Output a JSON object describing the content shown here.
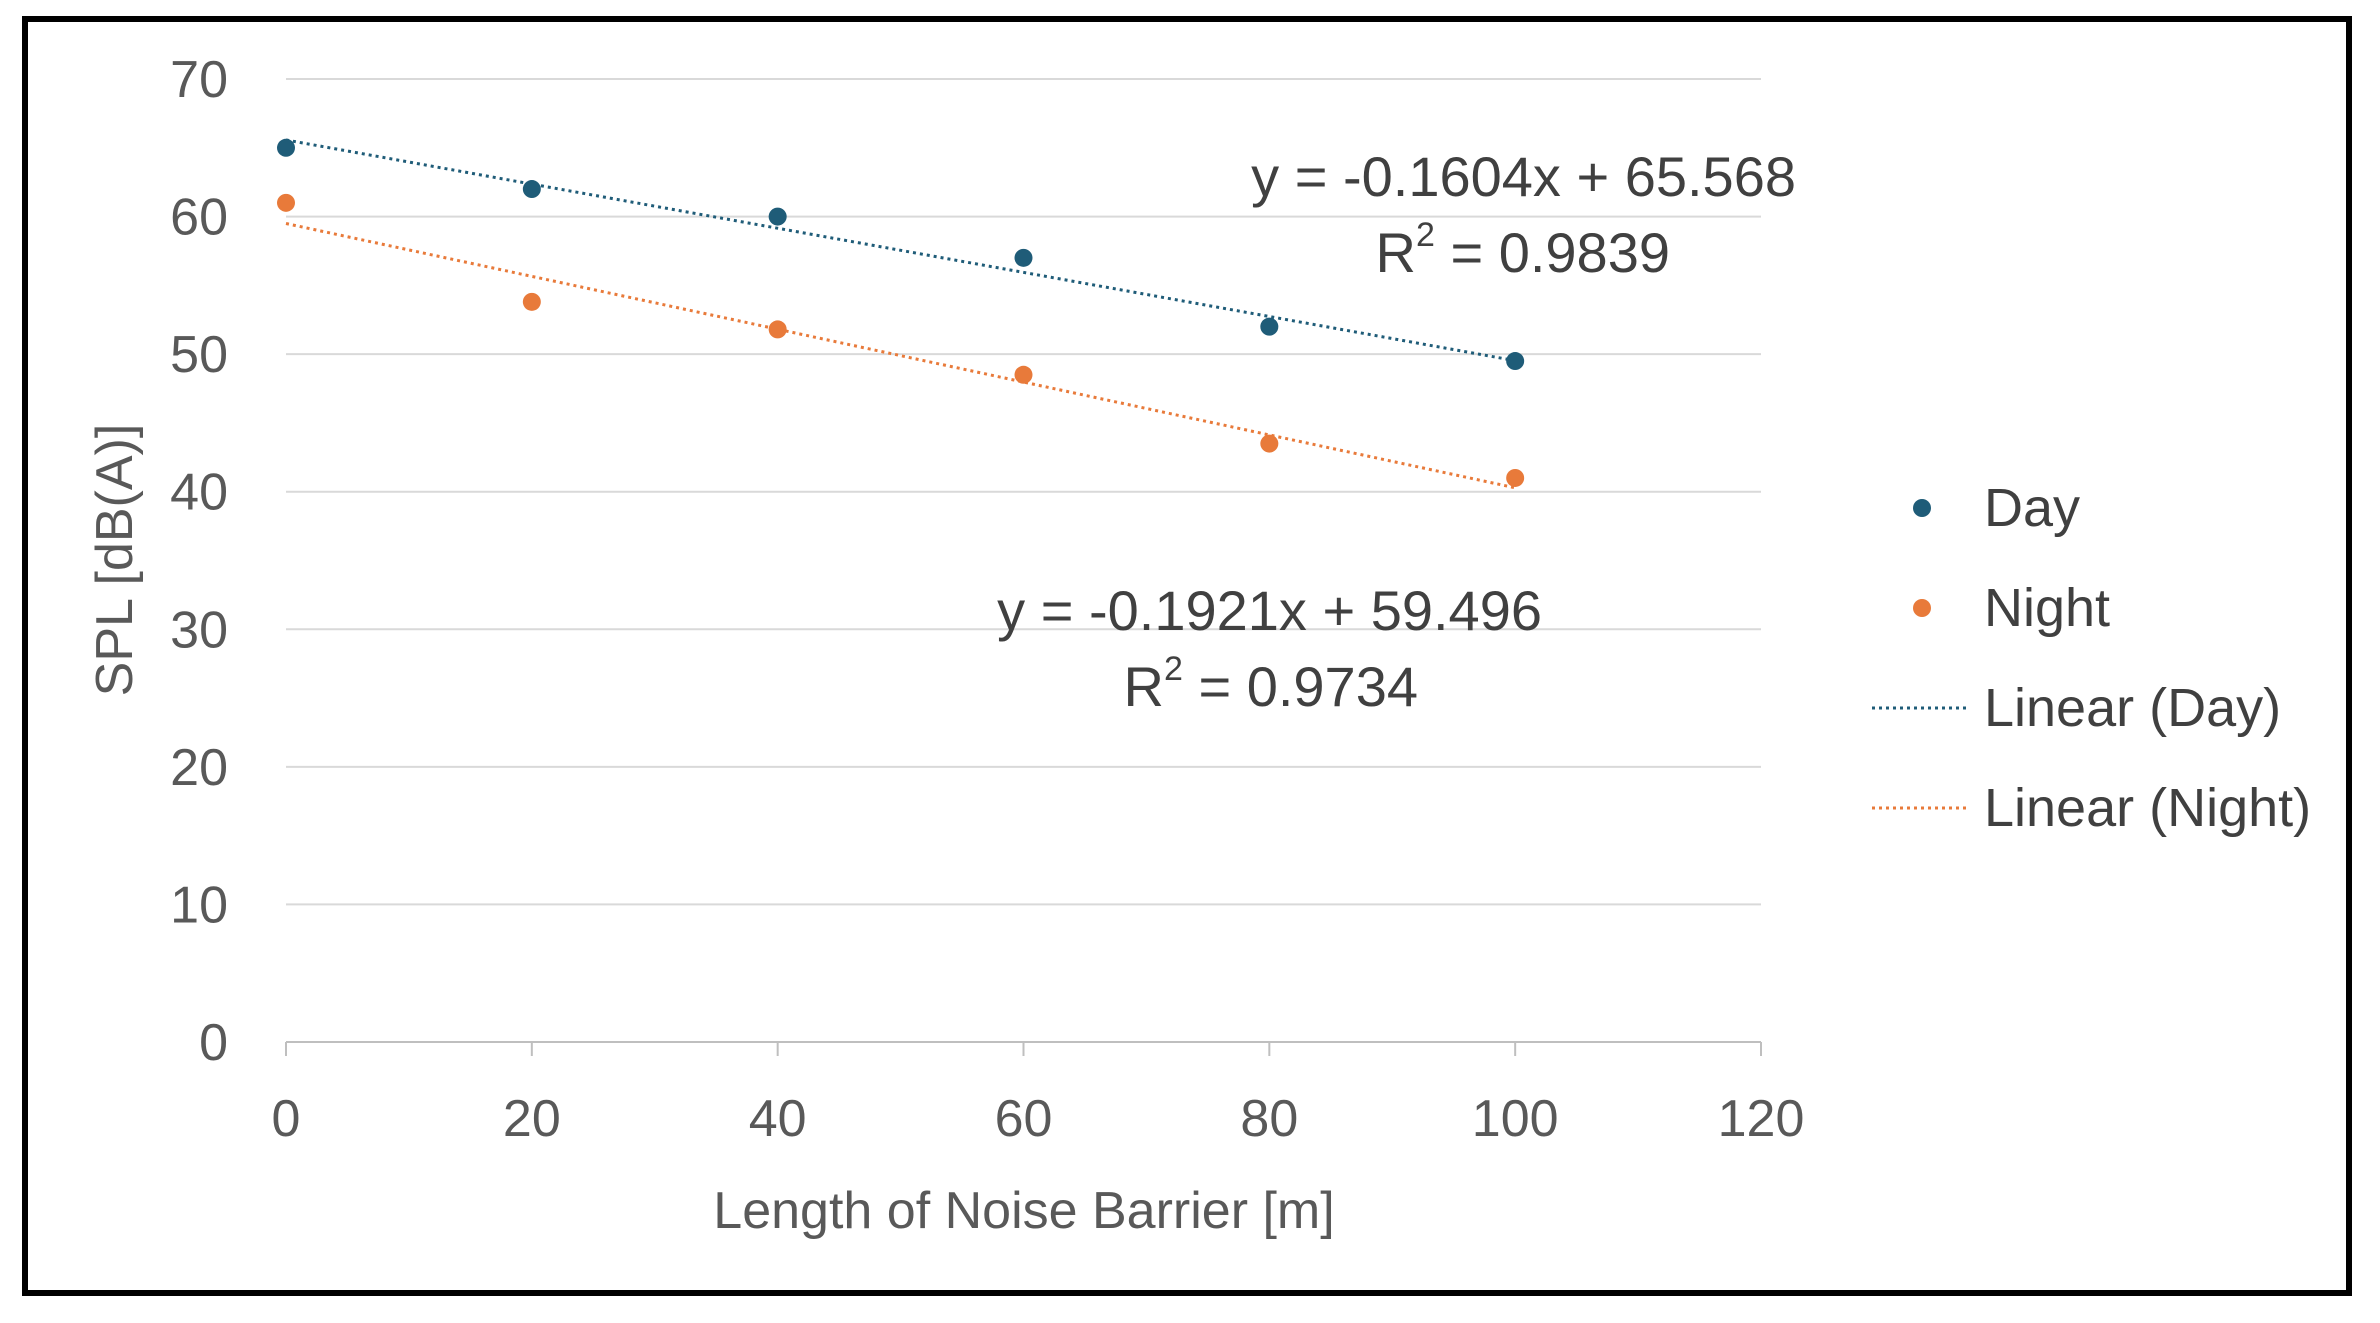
{
  "chart_data": {
    "type": "scatter",
    "xlabel": "Length of Noise Barrier [m]",
    "ylabel": "SPL [dB(A)]",
    "xlim": [
      0,
      120
    ],
    "ylim": [
      0,
      70
    ],
    "xticks": [
      0,
      20,
      40,
      60,
      80,
      100,
      120
    ],
    "yticks": [
      0,
      10,
      20,
      30,
      40,
      50,
      60,
      70
    ],
    "grid": "horizontal",
    "legend_position": "right",
    "series": [
      {
        "name": "Day",
        "color": "#1f5c78",
        "x": [
          0,
          20,
          40,
          60,
          80,
          100
        ],
        "y": [
          65,
          62,
          60,
          57,
          52,
          49.5
        ]
      },
      {
        "name": "Night",
        "color": "#e87a3a",
        "x": [
          0,
          20,
          40,
          60,
          80,
          100
        ],
        "y": [
          61,
          53.8,
          51.8,
          48.5,
          43.5,
          41
        ]
      }
    ],
    "trendlines": [
      {
        "name": "Linear (Day)",
        "color": "#1f5c78",
        "slope": -0.1604,
        "intercept": 65.568,
        "x_range": [
          0,
          100
        ],
        "equation": "y = -0.1604x + 65.568",
        "r2_prefix": "R",
        "r2_sup": "2",
        "r2_value": " = 0.9839"
      },
      {
        "name": "Linear (Night)",
        "color": "#e87a3a",
        "slope": -0.1921,
        "intercept": 59.496,
        "x_range": [
          0,
          100
        ],
        "equation": "y = -0.1921x + 59.496",
        "r2_prefix": "R",
        "r2_sup": "2",
        "r2_value": " = 0.9734"
      }
    ]
  }
}
